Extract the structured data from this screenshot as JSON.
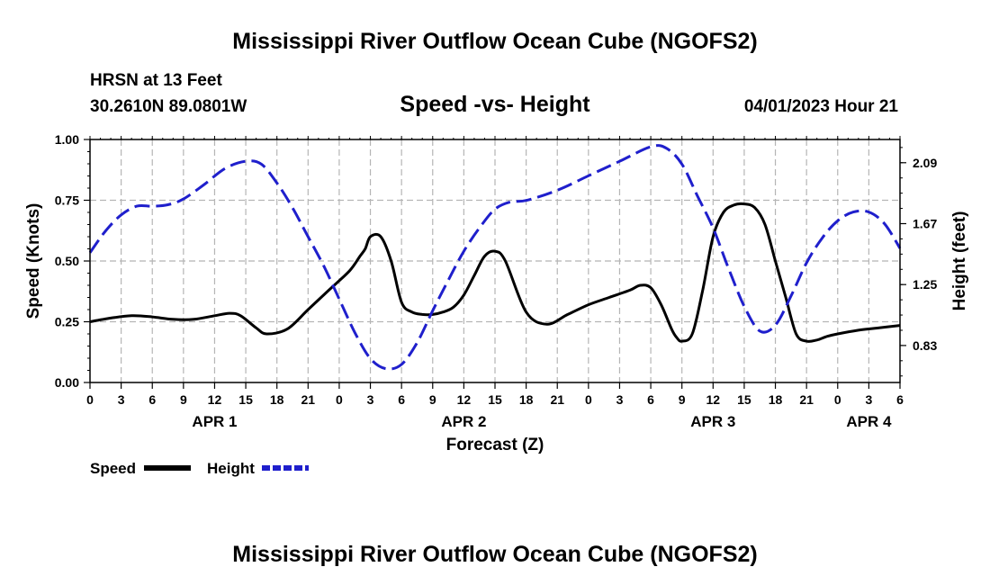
{
  "header": {
    "title": "Mississippi River Outflow Ocean Cube (NGOFS2)",
    "station_line": "HRSN at 13 Feet",
    "coords": "30.2610N  89.0801W",
    "subtitle": "Speed -vs- Height",
    "datetime": "04/01/2023 Hour 21"
  },
  "footer": {
    "title": "Mississippi River Outflow Ocean Cube (NGOFS2)"
  },
  "chart_data": {
    "type": "line",
    "title": "Speed -vs- Height",
    "xlabel": "Forecast (Z)",
    "ylabel_left": "Speed (Knots)",
    "ylabel_right": "Height (feet)",
    "x_range_hours": [
      0,
      78
    ],
    "x_tick_step_hours": 3,
    "x_tick_labels": [
      "0",
      "3",
      "6",
      "9",
      "12",
      "15",
      "18",
      "21",
      "0",
      "3",
      "6",
      "9",
      "12",
      "15",
      "18",
      "21",
      "0",
      "3",
      "6",
      "9",
      "12",
      "15",
      "18",
      "21",
      "0",
      "3",
      "6"
    ],
    "day_labels": [
      {
        "label": "APR 1",
        "hour": 12
      },
      {
        "label": "APR 2",
        "hour": 36
      },
      {
        "label": "APR 3",
        "hour": 60
      },
      {
        "label": "APR 4",
        "hour": 75
      }
    ],
    "y_left_range": [
      0,
      1
    ],
    "y_left_ticks": [
      "0.00",
      "0.25",
      "0.50",
      "0.75",
      "1.00"
    ],
    "y_right_range": [
      0.575,
      2.25
    ],
    "y_right_ticks": [
      "0.83",
      "1.25",
      "1.67",
      "2.09"
    ],
    "grid": true,
    "legend_position": "bottom-left",
    "series": [
      {
        "name": "Speed",
        "axis": "left",
        "color": "#000000",
        "style": "solid",
        "x": [
          0,
          2,
          4,
          6,
          8,
          10,
          12,
          13.5,
          14.5,
          16,
          17,
          19,
          21,
          23,
          25,
          26,
          26.5,
          27,
          28,
          29,
          30,
          31,
          32,
          33,
          34,
          35,
          36,
          37,
          38,
          39,
          40,
          42,
          44,
          46,
          48,
          50,
          52,
          53,
          54,
          55,
          56,
          56.5,
          57,
          58,
          59,
          60,
          61,
          62,
          63,
          64,
          65,
          66,
          67,
          68,
          69,
          70,
          71,
          72,
          74,
          76,
          78
        ],
        "y": [
          0.25,
          0.265,
          0.275,
          0.27,
          0.26,
          0.26,
          0.275,
          0.285,
          0.275,
          0.225,
          0.2,
          0.22,
          0.3,
          0.38,
          0.46,
          0.52,
          0.55,
          0.6,
          0.6,
          0.5,
          0.33,
          0.29,
          0.28,
          0.28,
          0.29,
          0.31,
          0.36,
          0.44,
          0.52,
          0.54,
          0.5,
          0.29,
          0.24,
          0.28,
          0.32,
          0.35,
          0.38,
          0.4,
          0.39,
          0.32,
          0.22,
          0.185,
          0.17,
          0.2,
          0.38,
          0.6,
          0.7,
          0.73,
          0.735,
          0.72,
          0.65,
          0.5,
          0.35,
          0.2,
          0.17,
          0.175,
          0.19,
          0.2,
          0.215,
          0.225,
          0.235
        ]
      },
      {
        "name": "Height",
        "axis": "right",
        "color": "#1f1fcc",
        "style": "dashed",
        "x": [
          0,
          1.5,
          3,
          4.5,
          6,
          7.5,
          9,
          11,
          13,
          15,
          16.5,
          18,
          19.5,
          21,
          22.5,
          24,
          25.5,
          27,
          28.5,
          30,
          31.5,
          33,
          34.5,
          36,
          37.5,
          39,
          40.5,
          42,
          45,
          48,
          51,
          54,
          55.5,
          57,
          58.5,
          60,
          61.5,
          63,
          64.5,
          66,
          67.5,
          69,
          70.5,
          72,
          73.5,
          75,
          76.5,
          78
        ],
        "y": [
          1.47,
          1.62,
          1.73,
          1.79,
          1.79,
          1.8,
          1.84,
          1.94,
          2.05,
          2.1,
          2.08,
          1.95,
          1.78,
          1.58,
          1.38,
          1.15,
          0.92,
          0.74,
          0.67,
          0.7,
          0.85,
          1.07,
          1.28,
          1.48,
          1.64,
          1.77,
          1.82,
          1.83,
          1.9,
          2.0,
          2.1,
          2.2,
          2.19,
          2.08,
          1.86,
          1.64,
          1.36,
          1.1,
          0.93,
          0.97,
          1.17,
          1.4,
          1.57,
          1.69,
          1.75,
          1.75,
          1.67,
          1.5
        ]
      }
    ]
  }
}
